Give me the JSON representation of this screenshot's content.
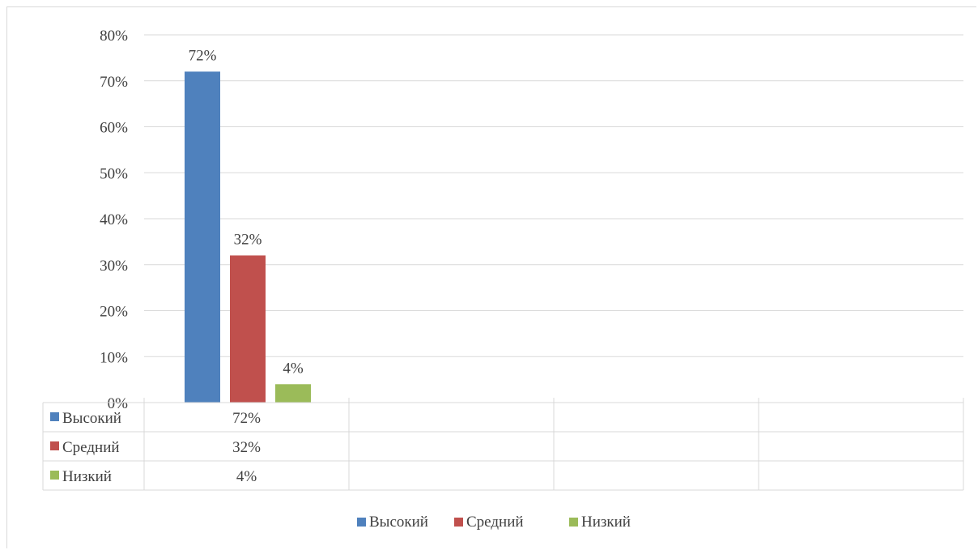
{
  "chart_data": {
    "type": "bar",
    "categories": [
      ""
    ],
    "series": [
      {
        "name": "Высокий",
        "values": [
          72
        ],
        "label": "72%",
        "color": "#4f81bd"
      },
      {
        "name": "Средний",
        "values": [
          32
        ],
        "label": "32%",
        "color": "#c0504d"
      },
      {
        "name": "Низкий",
        "values": [
          4
        ],
        "label": "4%",
        "color": "#9bbb59"
      }
    ],
    "ylim": [
      0,
      80
    ],
    "yticks": [
      "0%",
      "10%",
      "20%",
      "30%",
      "40%",
      "50%",
      "60%",
      "70%",
      "80%"
    ],
    "grid": true,
    "data_table": true,
    "legend": "bottom"
  }
}
